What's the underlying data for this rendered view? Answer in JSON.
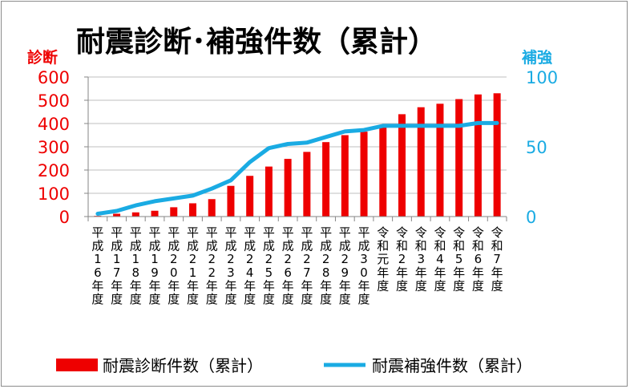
{
  "chart_data": {
    "type": "bar+line",
    "title": "耐震診断･補強件数（累計）",
    "categories": [
      "平成16年度",
      "平成17年度",
      "平成18年度",
      "平成19年度",
      "平成20年度",
      "平成21年度",
      "平成22年度",
      "平成23年度",
      "平成24年度",
      "平成25年度",
      "平成26年度",
      "平成27年度",
      "平成28年度",
      "平成29年度",
      "平成30年度",
      "令和元年度",
      "令和2年度",
      "令和3年度",
      "令和4年度",
      "令和5年度",
      "令和6年度",
      "令和7年度"
    ],
    "category_labels_vertical": [
      [
        "平",
        "成",
        "1",
        "6",
        "年",
        "度"
      ],
      [
        "平",
        "成",
        "1",
        "7",
        "年",
        "度"
      ],
      [
        "平",
        "成",
        "1",
        "8",
        "年",
        "度"
      ],
      [
        "平",
        "成",
        "1",
        "9",
        "年",
        "度"
      ],
      [
        "平",
        "成",
        "2",
        "0",
        "年",
        "度"
      ],
      [
        "平",
        "成",
        "2",
        "1",
        "年",
        "度"
      ],
      [
        "平",
        "成",
        "2",
        "2",
        "年",
        "度"
      ],
      [
        "平",
        "成",
        "2",
        "3",
        "年",
        "度"
      ],
      [
        "平",
        "成",
        "2",
        "4",
        "年",
        "度"
      ],
      [
        "平",
        "成",
        "2",
        "5",
        "年",
        "度"
      ],
      [
        "平",
        "成",
        "2",
        "6",
        "年",
        "度"
      ],
      [
        "平",
        "成",
        "2",
        "7",
        "年",
        "度"
      ],
      [
        "平",
        "成",
        "2",
        "8",
        "年",
        "度"
      ],
      [
        "平",
        "成",
        "2",
        "9",
        "年",
        "度"
      ],
      [
        "平",
        "成",
        "3",
        "0",
        "年",
        "度"
      ],
      [
        "令",
        "和",
        "元",
        "年",
        "度"
      ],
      [
        "令",
        "和",
        "2",
        "年",
        "度"
      ],
      [
        "令",
        "和",
        "3",
        "年",
        "度"
      ],
      [
        "令",
        "和",
        "4",
        "年",
        "度"
      ],
      [
        "令",
        "和",
        "5",
        "年",
        "度"
      ],
      [
        "令",
        "和",
        "6",
        "年",
        "度"
      ],
      [
        "令",
        "和",
        "7",
        "年",
        "度"
      ]
    ],
    "series": [
      {
        "name": "耐震診断件数（累計）",
        "kind": "bar",
        "axis": "left",
        "color": "#ee0000",
        "values": [
          3,
          12,
          18,
          25,
          40,
          57,
          75,
          132,
          175,
          215,
          248,
          278,
          320,
          350,
          365,
          395,
          440,
          470,
          485,
          505,
          525,
          530
        ]
      },
      {
        "name": "耐震補強件数（累計）",
        "kind": "line",
        "axis": "right",
        "color": "#1aabe3",
        "values": [
          2,
          4,
          8,
          11,
          13,
          15,
          20,
          26,
          39,
          49,
          52,
          53,
          57,
          61,
          62,
          65,
          65,
          65,
          65,
          65,
          67,
          67
        ]
      }
    ],
    "left_axis": {
      "label": "診断",
      "ylim": [
        0,
        600
      ],
      "ticks": [
        0,
        100,
        200,
        300,
        400,
        500,
        600
      ],
      "color": "#ee0000"
    },
    "right_axis": {
      "label": "補強",
      "ylim": [
        0,
        100
      ],
      "ticks": [
        0,
        50,
        100
      ],
      "color": "#1aabe3"
    },
    "legend": {
      "placement": "bottom",
      "items": [
        {
          "label": "耐震診断件数（累計）",
          "kind": "bar",
          "color": "#ee0000"
        },
        {
          "label": "耐震補強件数（累計）",
          "kind": "line",
          "color": "#1aabe3"
        }
      ]
    }
  }
}
